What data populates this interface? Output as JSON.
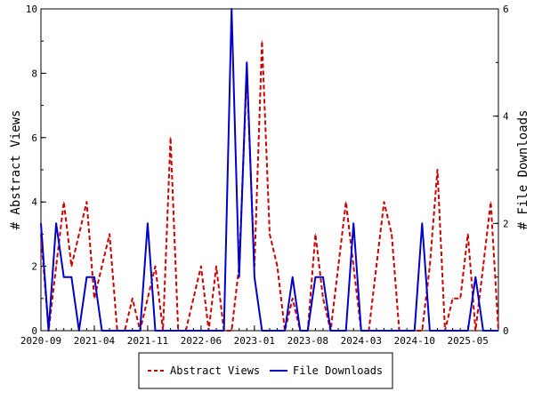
{
  "chart_data": {
    "type": "line",
    "title": "",
    "xlabel": "",
    "ylabel_left": "# Abstract Views",
    "ylabel_right": "# File Downloads",
    "ylim_left": [
      0,
      10
    ],
    "ylim_right": [
      0,
      6
    ],
    "yticks_left": [
      "0",
      "2",
      "4",
      "6",
      "8",
      "10"
    ],
    "yticks_right": [
      "0",
      "2",
      "4",
      "6"
    ],
    "x_tick_labels": [
      "2020-09",
      "2021-04",
      "2021-11",
      "2022-06",
      "2023-01",
      "2023-08",
      "2024-03",
      "2024-10",
      "2025-05"
    ],
    "x_range": [
      "2020-09",
      "2025-09"
    ],
    "grid": false,
    "legend_position": "bottom",
    "colors": {
      "abstract_views": "#cc0000",
      "file_downloads": "#0000cc"
    },
    "series": [
      {
        "name": "Abstract Views",
        "axis": "left",
        "style": "dashed",
        "points": [
          [
            "2020-09",
            3
          ],
          [
            "2020-10",
            0
          ],
          [
            "2020-11",
            2
          ],
          [
            "2020-12",
            4
          ],
          [
            "2021-01",
            2
          ],
          [
            "2021-02",
            3
          ],
          [
            "2021-03",
            4
          ],
          [
            "2021-04",
            1
          ],
          [
            "2021-05",
            2
          ],
          [
            "2021-06",
            3
          ],
          [
            "2021-07",
            0
          ],
          [
            "2021-08",
            0
          ],
          [
            "2021-09",
            1
          ],
          [
            "2021-10",
            0
          ],
          [
            "2021-11",
            1
          ],
          [
            "2021-12",
            2
          ],
          [
            "2022-01",
            0
          ],
          [
            "2022-02",
            6
          ],
          [
            "2022-03",
            0
          ],
          [
            "2022-04",
            0
          ],
          [
            "2022-05",
            1
          ],
          [
            "2022-06",
            2
          ],
          [
            "2022-07",
            0
          ],
          [
            "2022-08",
            2
          ],
          [
            "2022-09",
            0
          ],
          [
            "2022-10",
            0
          ],
          [
            "2022-11",
            2
          ],
          [
            "2022-12",
            8
          ],
          [
            "2023-01",
            2
          ],
          [
            "2023-02",
            9
          ],
          [
            "2023-03",
            3
          ],
          [
            "2023-04",
            2
          ],
          [
            "2023-05",
            0
          ],
          [
            "2023-06",
            1
          ],
          [
            "2023-07",
            0
          ],
          [
            "2023-08",
            0
          ],
          [
            "2023-09",
            3
          ],
          [
            "2023-10",
            1
          ],
          [
            "2023-11",
            0
          ],
          [
            "2023-12",
            2
          ],
          [
            "2024-01",
            4
          ],
          [
            "2024-02",
            2
          ],
          [
            "2024-03",
            0
          ],
          [
            "2024-04",
            0
          ],
          [
            "2024-05",
            2
          ],
          [
            "2024-06",
            4
          ],
          [
            "2024-07",
            3
          ],
          [
            "2024-08",
            0
          ],
          [
            "2024-09",
            0
          ],
          [
            "2024-10",
            0
          ],
          [
            "2024-11",
            0
          ],
          [
            "2024-12",
            2
          ],
          [
            "2025-01",
            5
          ],
          [
            "2025-02",
            0
          ],
          [
            "2025-03",
            1
          ],
          [
            "2025-04",
            1
          ],
          [
            "2025-05",
            3
          ],
          [
            "2025-06",
            0
          ],
          [
            "2025-07",
            2
          ],
          [
            "2025-08",
            4
          ],
          [
            "2025-09",
            0
          ]
        ]
      },
      {
        "name": "File Downloads",
        "axis": "right",
        "style": "solid",
        "points": [
          [
            "2020-09",
            2
          ],
          [
            "2020-10",
            0
          ],
          [
            "2020-11",
            2
          ],
          [
            "2020-12",
            1
          ],
          [
            "2021-01",
            1
          ],
          [
            "2021-02",
            0
          ],
          [
            "2021-03",
            1
          ],
          [
            "2021-04",
            1
          ],
          [
            "2021-05",
            0
          ],
          [
            "2021-06",
            0
          ],
          [
            "2021-07",
            0
          ],
          [
            "2021-08",
            0
          ],
          [
            "2021-09",
            0
          ],
          [
            "2021-10",
            0
          ],
          [
            "2021-11",
            2
          ],
          [
            "2021-12",
            0
          ],
          [
            "2022-01",
            0
          ],
          [
            "2022-02",
            0
          ],
          [
            "2022-03",
            0
          ],
          [
            "2022-04",
            0
          ],
          [
            "2022-05",
            0
          ],
          [
            "2022-06",
            0
          ],
          [
            "2022-07",
            0
          ],
          [
            "2022-08",
            0
          ],
          [
            "2022-09",
            0
          ],
          [
            "2022-10",
            6
          ],
          [
            "2022-11",
            1
          ],
          [
            "2022-12",
            5
          ],
          [
            "2023-01",
            1
          ],
          [
            "2023-02",
            0
          ],
          [
            "2023-03",
            0
          ],
          [
            "2023-04",
            0
          ],
          [
            "2023-05",
            0
          ],
          [
            "2023-06",
            1
          ],
          [
            "2023-07",
            0
          ],
          [
            "2023-08",
            0
          ],
          [
            "2023-09",
            1
          ],
          [
            "2023-10",
            1
          ],
          [
            "2023-11",
            0
          ],
          [
            "2023-12",
            0
          ],
          [
            "2024-01",
            0
          ],
          [
            "2024-02",
            2
          ],
          [
            "2024-03",
            0
          ],
          [
            "2024-04",
            0
          ],
          [
            "2024-05",
            0
          ],
          [
            "2024-06",
            0
          ],
          [
            "2024-07",
            0
          ],
          [
            "2024-08",
            0
          ],
          [
            "2024-09",
            0
          ],
          [
            "2024-10",
            0
          ],
          [
            "2024-11",
            2
          ],
          [
            "2024-12",
            0
          ],
          [
            "2025-01",
            0
          ],
          [
            "2025-02",
            0
          ],
          [
            "2025-03",
            0
          ],
          [
            "2025-04",
            0
          ],
          [
            "2025-05",
            0
          ],
          [
            "2025-06",
            1
          ],
          [
            "2025-07",
            0
          ],
          [
            "2025-08",
            0
          ],
          [
            "2025-09",
            0
          ]
        ]
      }
    ]
  }
}
